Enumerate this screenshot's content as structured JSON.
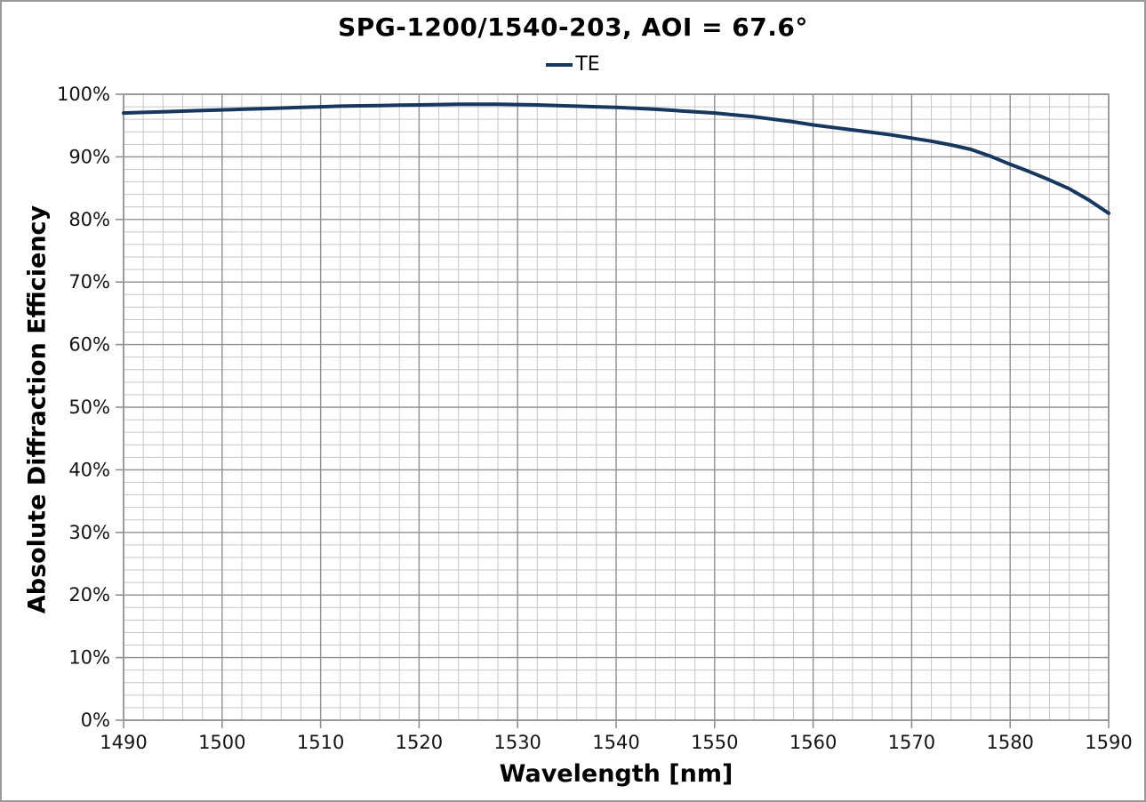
{
  "title": "SPG-1200/1540-203, AOI = 67.6°",
  "legend": {
    "entries": [
      {
        "label": "TE",
        "color": "#17375E"
      }
    ]
  },
  "colors": {
    "series_line": "#17375E",
    "grid_minor": "#c6c6c6",
    "grid_major": "#8f8f8f",
    "plot_border": "#8f8f8f",
    "text": "#000000",
    "frame_border": "#9a9a9a",
    "background": "#ffffff"
  },
  "chart_data": {
    "type": "line",
    "title": "SPG-1200/1540-203, AOI = 67.6°",
    "xlabel": "Wavelength [nm]",
    "ylabel": "Absolute Diffraction Efficiency",
    "xlim": [
      1490,
      1590
    ],
    "ylim": [
      0,
      100
    ],
    "x_major_step": 10,
    "x_minor_step": 2,
    "y_major_step": 10,
    "y_minor_step": 2,
    "grid": "major+minor",
    "legend_position": "top-center",
    "x_tick_labels": [
      "1490",
      "1500",
      "1510",
      "1520",
      "1530",
      "1540",
      "1550",
      "1560",
      "1570",
      "1580",
      "1590"
    ],
    "y_tick_labels": [
      "0%",
      "10%",
      "20%",
      "30%",
      "40%",
      "50%",
      "60%",
      "70%",
      "80%",
      "90%",
      "100%"
    ],
    "series": [
      {
        "name": "TE",
        "color": "#17375E",
        "x": [
          1490,
          1492,
          1494,
          1496,
          1498,
          1500,
          1502,
          1504,
          1506,
          1508,
          1510,
          1512,
          1514,
          1516,
          1518,
          1520,
          1522,
          1524,
          1526,
          1528,
          1530,
          1532,
          1534,
          1536,
          1538,
          1540,
          1542,
          1544,
          1546,
          1548,
          1550,
          1552,
          1554,
          1556,
          1558,
          1560,
          1562,
          1564,
          1566,
          1568,
          1570,
          1572,
          1574,
          1576,
          1578,
          1580,
          1582,
          1584,
          1586,
          1588,
          1590
        ],
        "y": [
          97.0,
          97.1,
          97.2,
          97.3,
          97.4,
          97.5,
          97.6,
          97.7,
          97.8,
          97.9,
          98.0,
          98.1,
          98.15,
          98.2,
          98.25,
          98.3,
          98.35,
          98.4,
          98.4,
          98.4,
          98.35,
          98.3,
          98.2,
          98.1,
          98.0,
          97.9,
          97.75,
          97.6,
          97.4,
          97.2,
          97.0,
          96.7,
          96.4,
          96.0,
          95.6,
          95.1,
          94.7,
          94.3,
          93.9,
          93.5,
          93.0,
          92.5,
          91.9,
          91.2,
          90.1,
          88.8,
          87.6,
          86.3,
          84.9,
          83.1,
          81.0
        ]
      }
    ]
  }
}
